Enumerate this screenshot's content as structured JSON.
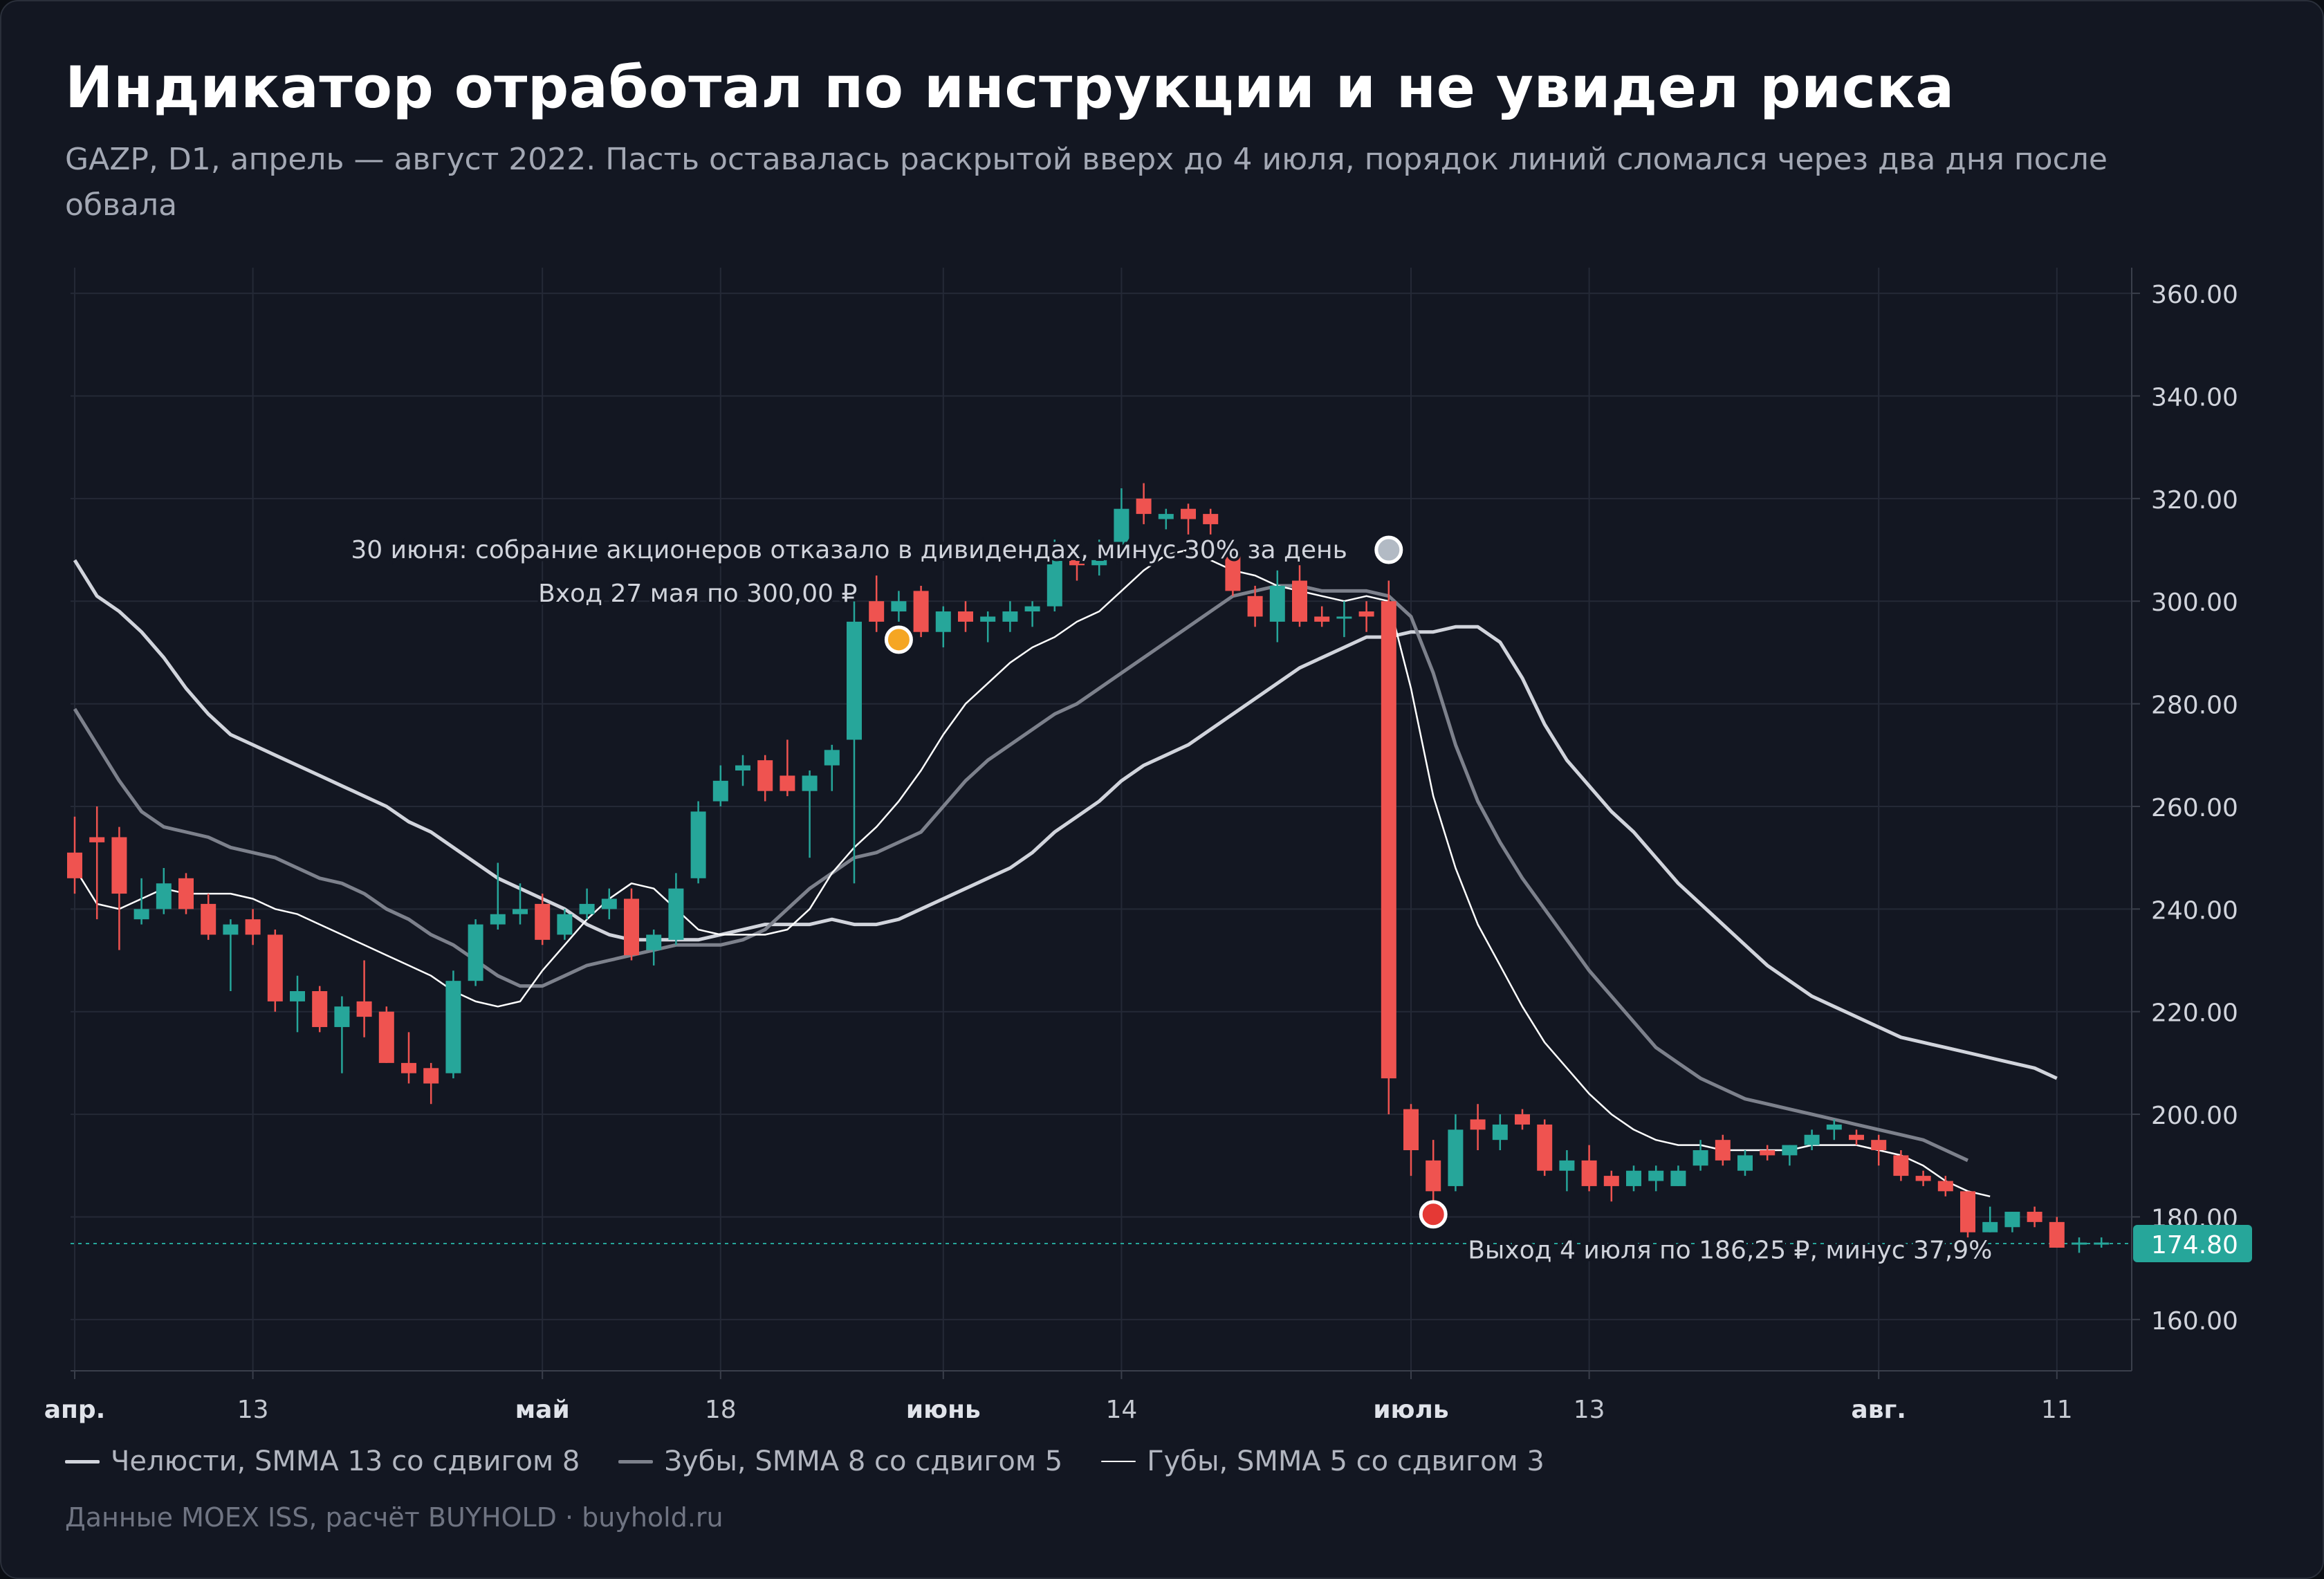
{
  "title": "Индикатор отработал по инструкции и не увидел риска",
  "subtitle": "GAZP, D1, апрель — август 2022. Пасть оставалась раскрытой вверх до 4 июля, порядок линий сломался через два дня после обвала",
  "source": "Данные MOEX ISS, расчёт BUYHOLD · buyhold.ru",
  "colors": {
    "background": "#131722",
    "up": "#26a69a",
    "down": "#ef5350",
    "grid": "#242936",
    "jaw": "#d1d4dc",
    "teeth": "#7d818c",
    "lips": "#ffffff",
    "entry_marker": "#f5a623",
    "event_marker": "#b2bac4",
    "exit_marker": "#e53935"
  },
  "legend": [
    {
      "label": "Челюсти, SMMA 13 со сдвигом 8",
      "color": "#d1d4dc",
      "key": "jaw"
    },
    {
      "label": "Зубы, SMMA 8 со сдвигом 5",
      "color": "#7d818c",
      "key": "teeth"
    },
    {
      "label": "Губы, SMMA 5 со сдвигом 3",
      "color": "#ffffff",
      "key": "lips"
    }
  ],
  "chart_data": {
    "type": "candlestick",
    "ticker": "GAZP",
    "timeframe": "D1",
    "ylim": [
      150,
      365
    ],
    "y_ticks": [
      "160.00",
      "180.00",
      "200.00",
      "220.00",
      "240.00",
      "260.00",
      "280.00",
      "300.00",
      "320.00",
      "340.00",
      "360.00"
    ],
    "x_ticks": [
      {
        "label": "апр.",
        "index": 0,
        "bold": true
      },
      {
        "label": "13",
        "index": 8,
        "bold": false
      },
      {
        "label": "май",
        "index": 21,
        "bold": true
      },
      {
        "label": "18",
        "index": 29,
        "bold": false
      },
      {
        "label": "июнь",
        "index": 39,
        "bold": true
      },
      {
        "label": "14",
        "index": 47,
        "bold": false
      },
      {
        "label": "июль",
        "index": 60,
        "bold": true
      },
      {
        "label": "13",
        "index": 68,
        "bold": false
      },
      {
        "label": "авг.",
        "index": 81,
        "bold": true
      },
      {
        "label": "11",
        "index": 89,
        "bold": false
      }
    ],
    "last_price": "174.80",
    "last_price_value": 174.8,
    "candles": [
      [
        251,
        258,
        243,
        246
      ],
      [
        254,
        260,
        238,
        253
      ],
      [
        254,
        256,
        232,
        243
      ],
      [
        238,
        246,
        237,
        240
      ],
      [
        240,
        248,
        239,
        245
      ],
      [
        246,
        247,
        239,
        240
      ],
      [
        241,
        243,
        234,
        235
      ],
      [
        235,
        238,
        224,
        237
      ],
      [
        238,
        240,
        233,
        235
      ],
      [
        235,
        236,
        220,
        222
      ],
      [
        222,
        227,
        216,
        224
      ],
      [
        224,
        225,
        216,
        217
      ],
      [
        217,
        223,
        208,
        221
      ],
      [
        222,
        230,
        215,
        219
      ],
      [
        220,
        221,
        210,
        210
      ],
      [
        210,
        216,
        206,
        208
      ],
      [
        209,
        210,
        202,
        206
      ],
      [
        208,
        228,
        207,
        226
      ],
      [
        226,
        238,
        225,
        237
      ],
      [
        237,
        249,
        236,
        239
      ],
      [
        239,
        245,
        237,
        240
      ],
      [
        241,
        243,
        233,
        234
      ],
      [
        235,
        240,
        234,
        239
      ],
      [
        239,
        244,
        238,
        241
      ],
      [
        240,
        244,
        238,
        242
      ],
      [
        242,
        244,
        230,
        231
      ],
      [
        232,
        236,
        229,
        235
      ],
      [
        234,
        247,
        233,
        244
      ],
      [
        246,
        261,
        245,
        259
      ],
      [
        261,
        268,
        260,
        265
      ],
      [
        267,
        270,
        264,
        268
      ],
      [
        269,
        270,
        261,
        263
      ],
      [
        266,
        273,
        262,
        263
      ],
      [
        263,
        267,
        250,
        266
      ],
      [
        268,
        272,
        263,
        271
      ],
      [
        273,
        302,
        245,
        296
      ],
      [
        300,
        305,
        294,
        296
      ],
      [
        298,
        302,
        296,
        300
      ],
      [
        302,
        303,
        293,
        294
      ],
      [
        294,
        299,
        291,
        298
      ],
      [
        298,
        300,
        294,
        296
      ],
      [
        296,
        298,
        292,
        297
      ],
      [
        296,
        300,
        294,
        298
      ],
      [
        298,
        300,
        295,
        299
      ],
      [
        299,
        312,
        298,
        308
      ],
      [
        308,
        310,
        304,
        307
      ],
      [
        307,
        312,
        305,
        308
      ],
      [
        311,
        322,
        310,
        318
      ],
      [
        320,
        323,
        315,
        317
      ],
      [
        316,
        318,
        314,
        317
      ],
      [
        318,
        319,
        313,
        316
      ],
      [
        317,
        318,
        313,
        315
      ],
      [
        309,
        312,
        301,
        302
      ],
      [
        301,
        303,
        295,
        297
      ],
      [
        296,
        306,
        292,
        303
      ],
      [
        304,
        307,
        295,
        296
      ],
      [
        297,
        299,
        295,
        296
      ],
      [
        297,
        300,
        293,
        297
      ],
      [
        298,
        300,
        294,
        297
      ],
      [
        300,
        304,
        200,
        207
      ],
      [
        201,
        202,
        188,
        193
      ],
      [
        191,
        195,
        182,
        185
      ],
      [
        186,
        200,
        185,
        197
      ],
      [
        199,
        202,
        193,
        197
      ],
      [
        195,
        200,
        193,
        198
      ],
      [
        200,
        201,
        197,
        198
      ],
      [
        198,
        199,
        188,
        189
      ],
      [
        189,
        193,
        185,
        191
      ],
      [
        191,
        194,
        185,
        186
      ],
      [
        188,
        189,
        183,
        186
      ],
      [
        186,
        190,
        185,
        189
      ],
      [
        187,
        190,
        185,
        189
      ],
      [
        186,
        190,
        186,
        189
      ],
      [
        190,
        195,
        189,
        193
      ],
      [
        195,
        196,
        190,
        191
      ],
      [
        189,
        193,
        188,
        192
      ],
      [
        193,
        194,
        191,
        192
      ],
      [
        192,
        194,
        190,
        194
      ],
      [
        194,
        197,
        193,
        196
      ],
      [
        197,
        199,
        195,
        198
      ],
      [
        196,
        197,
        194,
        195
      ],
      [
        195,
        196,
        190,
        193
      ],
      [
        192,
        193,
        187,
        188
      ],
      [
        188,
        189,
        186,
        187
      ],
      [
        187,
        188,
        184,
        185
      ],
      [
        185,
        185,
        176,
        177
      ],
      [
        177,
        182,
        177,
        179
      ],
      [
        178,
        181,
        177,
        181
      ],
      [
        181,
        182,
        178,
        179
      ],
      [
        179,
        180,
        174,
        174
      ],
      [
        175,
        176,
        173,
        175
      ],
      [
        175,
        176,
        174,
        175
      ]
    ],
    "series": [
      {
        "name": "Челюсти, SMMA 13 со сдвигом 8",
        "key": "jaw",
        "values": [
          308,
          301,
          298,
          294,
          289,
          283,
          278,
          274,
          272,
          270,
          268,
          266,
          264,
          262,
          260,
          257,
          255,
          252,
          249,
          246,
          244,
          242,
          240,
          237,
          235,
          234,
          234,
          234,
          234,
          235,
          236,
          237,
          237,
          237,
          238,
          237,
          237,
          238,
          240,
          242,
          244,
          246,
          248,
          251,
          255,
          258,
          261,
          265,
          268,
          270,
          272,
          275,
          278,
          281,
          284,
          287,
          289,
          291,
          293,
          293,
          294,
          294,
          295,
          295,
          292,
          285,
          276,
          269,
          264,
          259,
          255,
          250,
          245,
          241,
          237,
          233,
          229,
          226,
          223,
          221,
          219,
          217,
          215,
          214,
          213,
          212,
          211,
          210,
          209,
          207
        ]
      },
      {
        "name": "Зубы, SMMA 8 со сдвигом 5",
        "key": "teeth",
        "values": [
          279,
          272,
          265,
          259,
          256,
          255,
          254,
          252,
          251,
          250,
          248,
          246,
          245,
          243,
          240,
          238,
          235,
          233,
          230,
          227,
          225,
          225,
          227,
          229,
          230,
          231,
          232,
          233,
          233,
          233,
          234,
          236,
          240,
          244,
          247,
          250,
          251,
          253,
          255,
          260,
          265,
          269,
          272,
          275,
          278,
          280,
          283,
          286,
          289,
          292,
          295,
          298,
          301,
          302,
          303,
          303,
          302,
          302,
          302,
          301,
          297,
          286,
          272,
          261,
          253,
          246,
          240,
          234,
          228,
          223,
          218,
          213,
          210,
          207,
          205,
          203,
          202,
          201,
          200,
          199,
          198,
          197,
          196,
          195,
          193,
          191
        ]
      },
      {
        "name": "Губы, SMMA 5 со сдвигом 3",
        "key": "lips",
        "values": [
          248,
          241,
          240,
          242,
          244,
          243,
          243,
          243,
          242,
          240,
          239,
          237,
          235,
          233,
          231,
          229,
          227,
          224,
          222,
          221,
          222,
          228,
          233,
          238,
          242,
          245,
          244,
          240,
          236,
          235,
          235,
          235,
          236,
          240,
          247,
          252,
          256,
          261,
          267,
          274,
          280,
          284,
          288,
          291,
          293,
          296,
          298,
          302,
          306,
          309,
          310,
          308,
          306,
          305,
          303,
          302,
          301,
          300,
          301,
          300,
          283,
          262,
          248,
          237,
          229,
          221,
          214,
          209,
          204,
          200,
          197,
          195,
          194,
          194,
          193,
          193,
          193,
          193,
          194,
          194,
          194,
          193,
          192,
          190,
          187,
          185,
          184
        ]
      }
    ],
    "annotations": {
      "entry": {
        "label": "Вход 27 мая по 300,00 ₽",
        "index": 37,
        "y": 292.5
      },
      "event": {
        "label": "30 июня: собрание акционеров отказало в дивидендах, минус 30% за день",
        "index": 59,
        "y": 310
      },
      "exit": {
        "label": "Выход 4 июля по 186,25 ₽, минус 37,9%",
        "index": 61,
        "y": 180.5
      }
    }
  }
}
